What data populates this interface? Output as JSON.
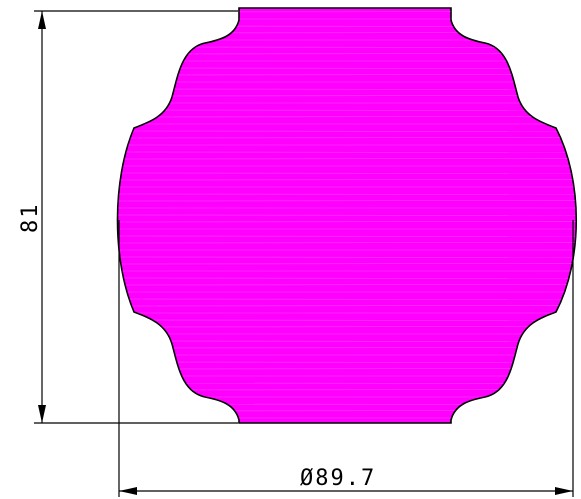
{
  "drawing": {
    "part_fill_color": "#ff00ff",
    "line_color": "#000000",
    "hatch_color": "#ffffff"
  },
  "dimensions": {
    "height_label": "81",
    "diameter_label": "Ø89.7"
  }
}
